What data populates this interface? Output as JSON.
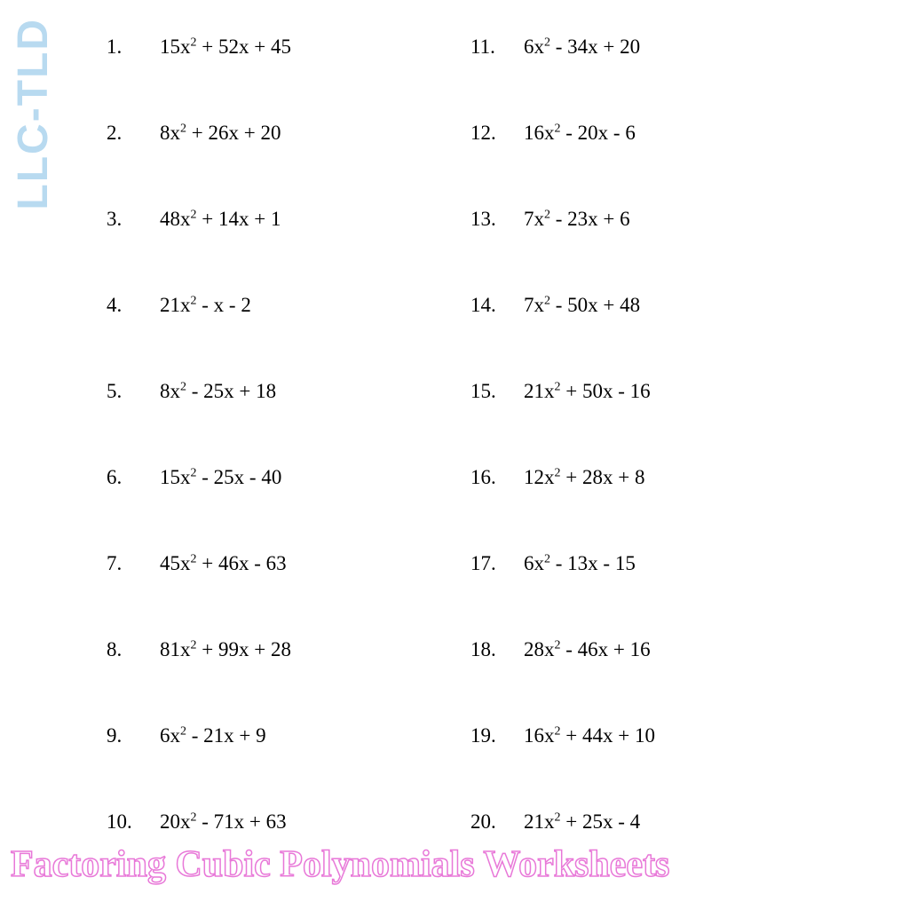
{
  "watermark_side": "LLC-TLD",
  "banner_text": "Factoring Cubic Polynomials Worksheets",
  "problems": [
    {
      "n": "1.",
      "a": "15",
      "m": " + 52x + 45",
      "n2": "11.",
      "a2": "6",
      "m2": " - 34x + 20"
    },
    {
      "n": "2.",
      "a": "8",
      "m": " + 26x + 20",
      "n2": "12.",
      "a2": "16",
      "m2": " - 20x - 6"
    },
    {
      "n": "3.",
      "a": "48",
      "m": " + 14x + 1",
      "n2": "13.",
      "a2": "7",
      "m2": " - 23x + 6"
    },
    {
      "n": "4.",
      "a": "21",
      "m": " - x - 2",
      "n2": "14.",
      "a2": "7",
      "m2": " - 50x + 48"
    },
    {
      "n": "5.",
      "a": "8",
      "m": " - 25x + 18",
      "n2": "15.",
      "a2": "21",
      "m2": " + 50x - 16"
    },
    {
      "n": "6.",
      "a": "15",
      "m": " - 25x - 40",
      "n2": "16.",
      "a2": "12",
      "m2": " + 28x + 8"
    },
    {
      "n": "7.",
      "a": "45",
      "m": " + 46x - 63",
      "n2": "17.",
      "a2": "6",
      "m2": " - 13x - 15"
    },
    {
      "n": "8.",
      "a": "81",
      "m": " + 99x + 28",
      "n2": "18.",
      "a2": "28",
      "m2": " - 46x + 16"
    },
    {
      "n": "9.",
      "a": "6",
      "m": " - 21x + 9",
      "n2": "19.",
      "a2": "16",
      "m2": " + 44x + 10"
    },
    {
      "n": "10.",
      "a": "20",
      "m": " - 71x + 63",
      "n2": "20.",
      "a2": "21",
      "m2": " + 25x - 4"
    }
  ]
}
